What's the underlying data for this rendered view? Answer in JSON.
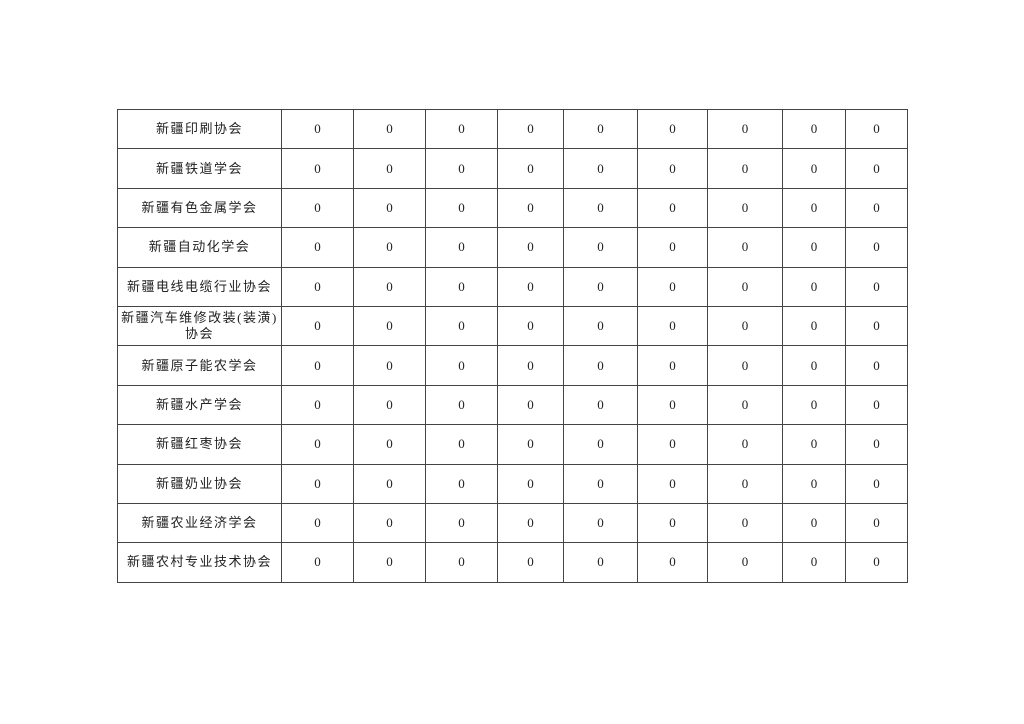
{
  "table": {
    "rows": [
      {
        "name": "新疆印刷协会",
        "values": [
          "0",
          "0",
          "0",
          "0",
          "0",
          "0",
          "0",
          "0",
          "0"
        ]
      },
      {
        "name": "新疆铁道学会",
        "values": [
          "0",
          "0",
          "0",
          "0",
          "0",
          "0",
          "0",
          "0",
          "0"
        ]
      },
      {
        "name": "新疆有色金属学会",
        "values": [
          "0",
          "0",
          "0",
          "0",
          "0",
          "0",
          "0",
          "0",
          "0"
        ]
      },
      {
        "name": "新疆自动化学会",
        "values": [
          "0",
          "0",
          "0",
          "0",
          "0",
          "0",
          "0",
          "0",
          "0"
        ]
      },
      {
        "name": "新疆电线电缆行业协会",
        "values": [
          "0",
          "0",
          "0",
          "0",
          "0",
          "0",
          "0",
          "0",
          "0"
        ]
      },
      {
        "name": "新疆汽车维修改装(装潢)协会",
        "values": [
          "0",
          "0",
          "0",
          "0",
          "0",
          "0",
          "0",
          "0",
          "0"
        ]
      },
      {
        "name": "新疆原子能农学会",
        "values": [
          "0",
          "0",
          "0",
          "0",
          "0",
          "0",
          "0",
          "0",
          "0"
        ]
      },
      {
        "name": "新疆水产学会",
        "values": [
          "0",
          "0",
          "0",
          "0",
          "0",
          "0",
          "0",
          "0",
          "0"
        ]
      },
      {
        "name": "新疆红枣协会",
        "values": [
          "0",
          "0",
          "0",
          "0",
          "0",
          "0",
          "0",
          "0",
          "0"
        ]
      },
      {
        "name": "新疆奶业协会",
        "values": [
          "0",
          "0",
          "0",
          "0",
          "0",
          "0",
          "0",
          "0",
          "0"
        ]
      },
      {
        "name": "新疆农业经济学会",
        "values": [
          "0",
          "0",
          "0",
          "0",
          "0",
          "0",
          "0",
          "0",
          "0"
        ]
      },
      {
        "name": "新疆农村专业技术协会",
        "values": [
          "0",
          "0",
          "0",
          "0",
          "0",
          "0",
          "0",
          "0",
          "0"
        ]
      }
    ]
  }
}
